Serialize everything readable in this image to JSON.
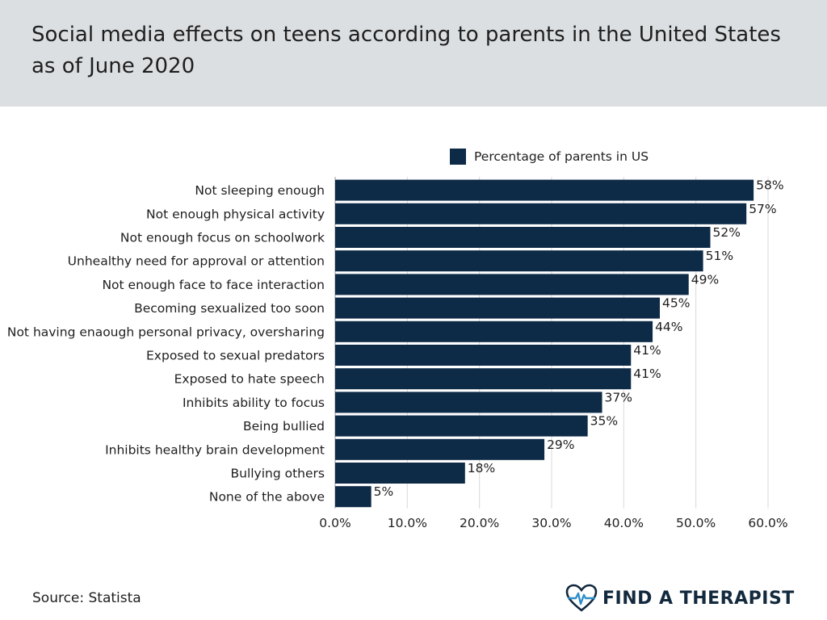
{
  "header": {
    "title": "Social media effects on teens according to parents in the United States as of June 2020"
  },
  "footer": {
    "source": "Source: Statista",
    "brand": "FIND A THERAPIST"
  },
  "colors": {
    "bar": "#0d2a47",
    "header_bg": "#dcdfe2",
    "brand": "#13293d"
  },
  "chart_data": {
    "type": "bar",
    "orientation": "horizontal",
    "categories": [
      "Not sleeping enough",
      "Not enough physical activity",
      "Not enough focus on schoolwork",
      "Unhealthy need for approval or attention",
      "Not enough face to face interaction",
      "Becoming sexualized too soon",
      "Not having enaough personal privacy, oversharing",
      "Exposed to sexual predators",
      "Exposed to hate speech",
      "Inhibits ability to focus",
      "Being bullied",
      "Inhibits healthy brain development",
      "Bullying others",
      "None of the above"
    ],
    "series": [
      {
        "name": "Percentage of parents in US",
        "values": [
          58,
          57,
          52,
          51,
          49,
          45,
          44,
          41,
          41,
          37,
          35,
          29,
          18,
          5
        ],
        "labels": [
          "58%",
          "57%",
          "52%",
          "51%",
          "49%",
          "45%",
          "44%",
          "41%",
          "41%",
          "37%",
          "35%",
          "29%",
          "18%",
          "5%"
        ]
      }
    ],
    "xlim": [
      0,
      60
    ],
    "xticks": [
      0,
      10,
      20,
      30,
      40,
      50,
      60
    ],
    "xtick_labels": [
      "0.0%",
      "10.0%",
      "20.0%",
      "30.0%",
      "40.0%",
      "50.0%",
      "60.0%"
    ],
    "grid": true,
    "legend": "top-center"
  }
}
